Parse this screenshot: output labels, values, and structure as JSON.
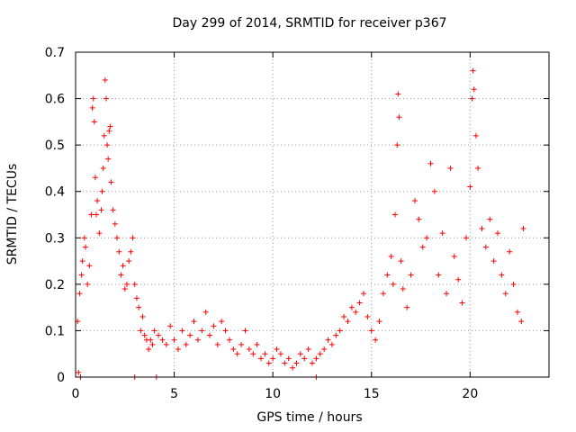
{
  "chart_data": {
    "type": "scatter",
    "title": "Day 299 of 2014, SRMTID for receiver p367",
    "xlabel": "GPS time / hours",
    "ylabel": "SRMTID / TECUs",
    "xlim": [
      0,
      24
    ],
    "ylim": [
      0,
      0.7
    ],
    "x_ticks": [
      0,
      5,
      10,
      15,
      20
    ],
    "y_ticks": [
      0,
      0.1,
      0.2,
      0.3,
      0.4,
      0.5,
      0.6,
      0.7
    ],
    "x_tick_labels": [
      "0",
      "5",
      "10",
      "15",
      "20"
    ],
    "y_tick_labels": [
      "0",
      "0.1",
      "0.2",
      "0.3",
      "0.4",
      "0.5",
      "0.6",
      "0.7"
    ],
    "grid": true,
    "marker": "plus",
    "color": "#ff0000",
    "series": [
      {
        "name": "SRMTID",
        "points": [
          [
            0.15,
            0.01
          ],
          [
            0.25,
            0.0
          ],
          [
            3.0,
            0.0
          ],
          [
            4.1,
            0.0
          ],
          [
            12.2,
            0.0
          ],
          [
            0.1,
            0.12
          ],
          [
            0.2,
            0.18
          ],
          [
            0.3,
            0.22
          ],
          [
            0.35,
            0.25
          ],
          [
            0.45,
            0.3
          ],
          [
            0.5,
            0.28
          ],
          [
            0.6,
            0.2
          ],
          [
            0.7,
            0.24
          ],
          [
            0.8,
            0.35
          ],
          [
            0.85,
            0.58
          ],
          [
            0.9,
            0.6
          ],
          [
            0.95,
            0.55
          ],
          [
            1.0,
            0.43
          ],
          [
            1.05,
            0.35
          ],
          [
            1.1,
            0.38
          ],
          [
            1.2,
            0.31
          ],
          [
            1.3,
            0.36
          ],
          [
            1.35,
            0.4
          ],
          [
            1.4,
            0.45
          ],
          [
            1.45,
            0.52
          ],
          [
            1.5,
            0.64
          ],
          [
            1.55,
            0.6
          ],
          [
            1.6,
            0.5
          ],
          [
            1.65,
            0.47
          ],
          [
            1.7,
            0.53
          ],
          [
            1.75,
            0.54
          ],
          [
            1.8,
            0.42
          ],
          [
            1.9,
            0.36
          ],
          [
            2.0,
            0.33
          ],
          [
            2.1,
            0.3
          ],
          [
            2.2,
            0.27
          ],
          [
            2.3,
            0.22
          ],
          [
            2.4,
            0.24
          ],
          [
            2.5,
            0.19
          ],
          [
            2.6,
            0.2
          ],
          [
            2.7,
            0.25
          ],
          [
            2.8,
            0.27
          ],
          [
            2.9,
            0.3
          ],
          [
            3.0,
            0.2
          ],
          [
            3.1,
            0.17
          ],
          [
            3.2,
            0.15
          ],
          [
            3.3,
            0.1
          ],
          [
            3.4,
            0.13
          ],
          [
            3.5,
            0.09
          ],
          [
            3.6,
            0.08
          ],
          [
            3.7,
            0.06
          ],
          [
            3.8,
            0.08
          ],
          [
            3.9,
            0.07
          ],
          [
            4.0,
            0.1
          ],
          [
            4.2,
            0.09
          ],
          [
            4.4,
            0.08
          ],
          [
            4.6,
            0.07
          ],
          [
            4.8,
            0.11
          ],
          [
            5.0,
            0.08
          ],
          [
            5.2,
            0.06
          ],
          [
            5.4,
            0.1
          ],
          [
            5.6,
            0.07
          ],
          [
            5.8,
            0.09
          ],
          [
            6.0,
            0.12
          ],
          [
            6.2,
            0.08
          ],
          [
            6.4,
            0.1
          ],
          [
            6.6,
            0.14
          ],
          [
            6.8,
            0.09
          ],
          [
            7.0,
            0.11
          ],
          [
            7.2,
            0.07
          ],
          [
            7.4,
            0.12
          ],
          [
            7.6,
            0.1
          ],
          [
            7.8,
            0.08
          ],
          [
            8.0,
            0.06
          ],
          [
            8.2,
            0.05
          ],
          [
            8.4,
            0.07
          ],
          [
            8.6,
            0.1
          ],
          [
            8.8,
            0.06
          ],
          [
            9.0,
            0.05
          ],
          [
            9.2,
            0.07
          ],
          [
            9.4,
            0.04
          ],
          [
            9.6,
            0.05
          ],
          [
            9.8,
            0.03
          ],
          [
            10.0,
            0.04
          ],
          [
            10.2,
            0.06
          ],
          [
            10.4,
            0.05
          ],
          [
            10.6,
            0.03
          ],
          [
            10.8,
            0.04
          ],
          [
            11.0,
            0.02
          ],
          [
            11.2,
            0.03
          ],
          [
            11.4,
            0.05
          ],
          [
            11.6,
            0.04
          ],
          [
            11.8,
            0.06
          ],
          [
            12.0,
            0.03
          ],
          [
            12.2,
            0.04
          ],
          [
            12.4,
            0.05
          ],
          [
            12.6,
            0.06
          ],
          [
            12.8,
            0.08
          ],
          [
            13.0,
            0.07
          ],
          [
            13.2,
            0.09
          ],
          [
            13.4,
            0.1
          ],
          [
            13.6,
            0.13
          ],
          [
            13.8,
            0.12
          ],
          [
            14.0,
            0.15
          ],
          [
            14.2,
            0.14
          ],
          [
            14.4,
            0.16
          ],
          [
            14.6,
            0.18
          ],
          [
            14.8,
            0.13
          ],
          [
            15.0,
            0.1
          ],
          [
            15.2,
            0.08
          ],
          [
            15.4,
            0.12
          ],
          [
            15.6,
            0.18
          ],
          [
            15.8,
            0.22
          ],
          [
            16.0,
            0.26
          ],
          [
            16.1,
            0.2
          ],
          [
            16.2,
            0.35
          ],
          [
            16.3,
            0.5
          ],
          [
            16.35,
            0.61
          ],
          [
            16.4,
            0.56
          ],
          [
            16.5,
            0.25
          ],
          [
            16.6,
            0.19
          ],
          [
            16.8,
            0.15
          ],
          [
            17.0,
            0.22
          ],
          [
            17.2,
            0.38
          ],
          [
            17.4,
            0.34
          ],
          [
            17.6,
            0.28
          ],
          [
            17.8,
            0.3
          ],
          [
            18.0,
            0.46
          ],
          [
            18.2,
            0.4
          ],
          [
            18.4,
            0.22
          ],
          [
            18.6,
            0.31
          ],
          [
            18.8,
            0.18
          ],
          [
            19.0,
            0.45
          ],
          [
            19.2,
            0.26
          ],
          [
            19.4,
            0.21
          ],
          [
            19.6,
            0.16
          ],
          [
            19.8,
            0.3
          ],
          [
            20.0,
            0.41
          ],
          [
            20.1,
            0.6
          ],
          [
            20.15,
            0.66
          ],
          [
            20.2,
            0.62
          ],
          [
            20.3,
            0.52
          ],
          [
            20.4,
            0.45
          ],
          [
            20.6,
            0.32
          ],
          [
            20.8,
            0.28
          ],
          [
            21.0,
            0.34
          ],
          [
            21.2,
            0.25
          ],
          [
            21.4,
            0.31
          ],
          [
            21.6,
            0.22
          ],
          [
            21.8,
            0.18
          ],
          [
            22.0,
            0.27
          ],
          [
            22.2,
            0.2
          ],
          [
            22.4,
            0.14
          ],
          [
            22.6,
            0.12
          ],
          [
            22.7,
            0.32
          ]
        ]
      }
    ]
  }
}
